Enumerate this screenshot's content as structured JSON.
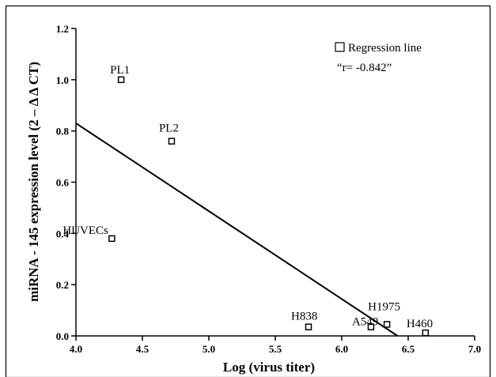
{
  "chart_data": {
    "type": "scatter",
    "title": "",
    "xlabel": "Log (virus titer)",
    "ylabel": "miRNA - 145 expression level (2 – Δ Δ CT)",
    "xlim": [
      4.0,
      7.0
    ],
    "ylim": [
      0.0,
      1.2
    ],
    "x_ticks": [
      4.0,
      4.5,
      5.0,
      5.5,
      6.0,
      6.5,
      7.0
    ],
    "x_tick_labels": [
      "4.0",
      "4.5",
      "5.0",
      "5.5",
      "6.0",
      "6.5",
      "7.0"
    ],
    "y_ticks": [
      0.0,
      0.2,
      0.4,
      0.6,
      0.8,
      1.0,
      1.2
    ],
    "y_tick_labels": [
      "0.0",
      "0.2",
      "0.4",
      "0.6",
      "0.8",
      "1.0",
      "1.2"
    ],
    "grid": false,
    "legend_position": "top-right",
    "legend": {
      "label": "Regression line",
      "annotation": "“r= -0.842”"
    },
    "points": [
      {
        "label": "PL1",
        "x": 4.34,
        "y": 1.0
      },
      {
        "label": "PL2",
        "x": 4.72,
        "y": 0.76
      },
      {
        "label": "HUVECs",
        "x": 4.27,
        "y": 0.38
      },
      {
        "label": "H838",
        "x": 5.75,
        "y": 0.035
      },
      {
        "label": "A549",
        "x": 6.22,
        "y": 0.035
      },
      {
        "label": "H1975",
        "x": 6.34,
        "y": 0.045
      },
      {
        "label": "H460",
        "x": 6.63,
        "y": 0.012
      }
    ],
    "regression_line": {
      "x1": 4.0,
      "y1": 0.83,
      "x2": 6.42,
      "y2": 0.0
    }
  }
}
